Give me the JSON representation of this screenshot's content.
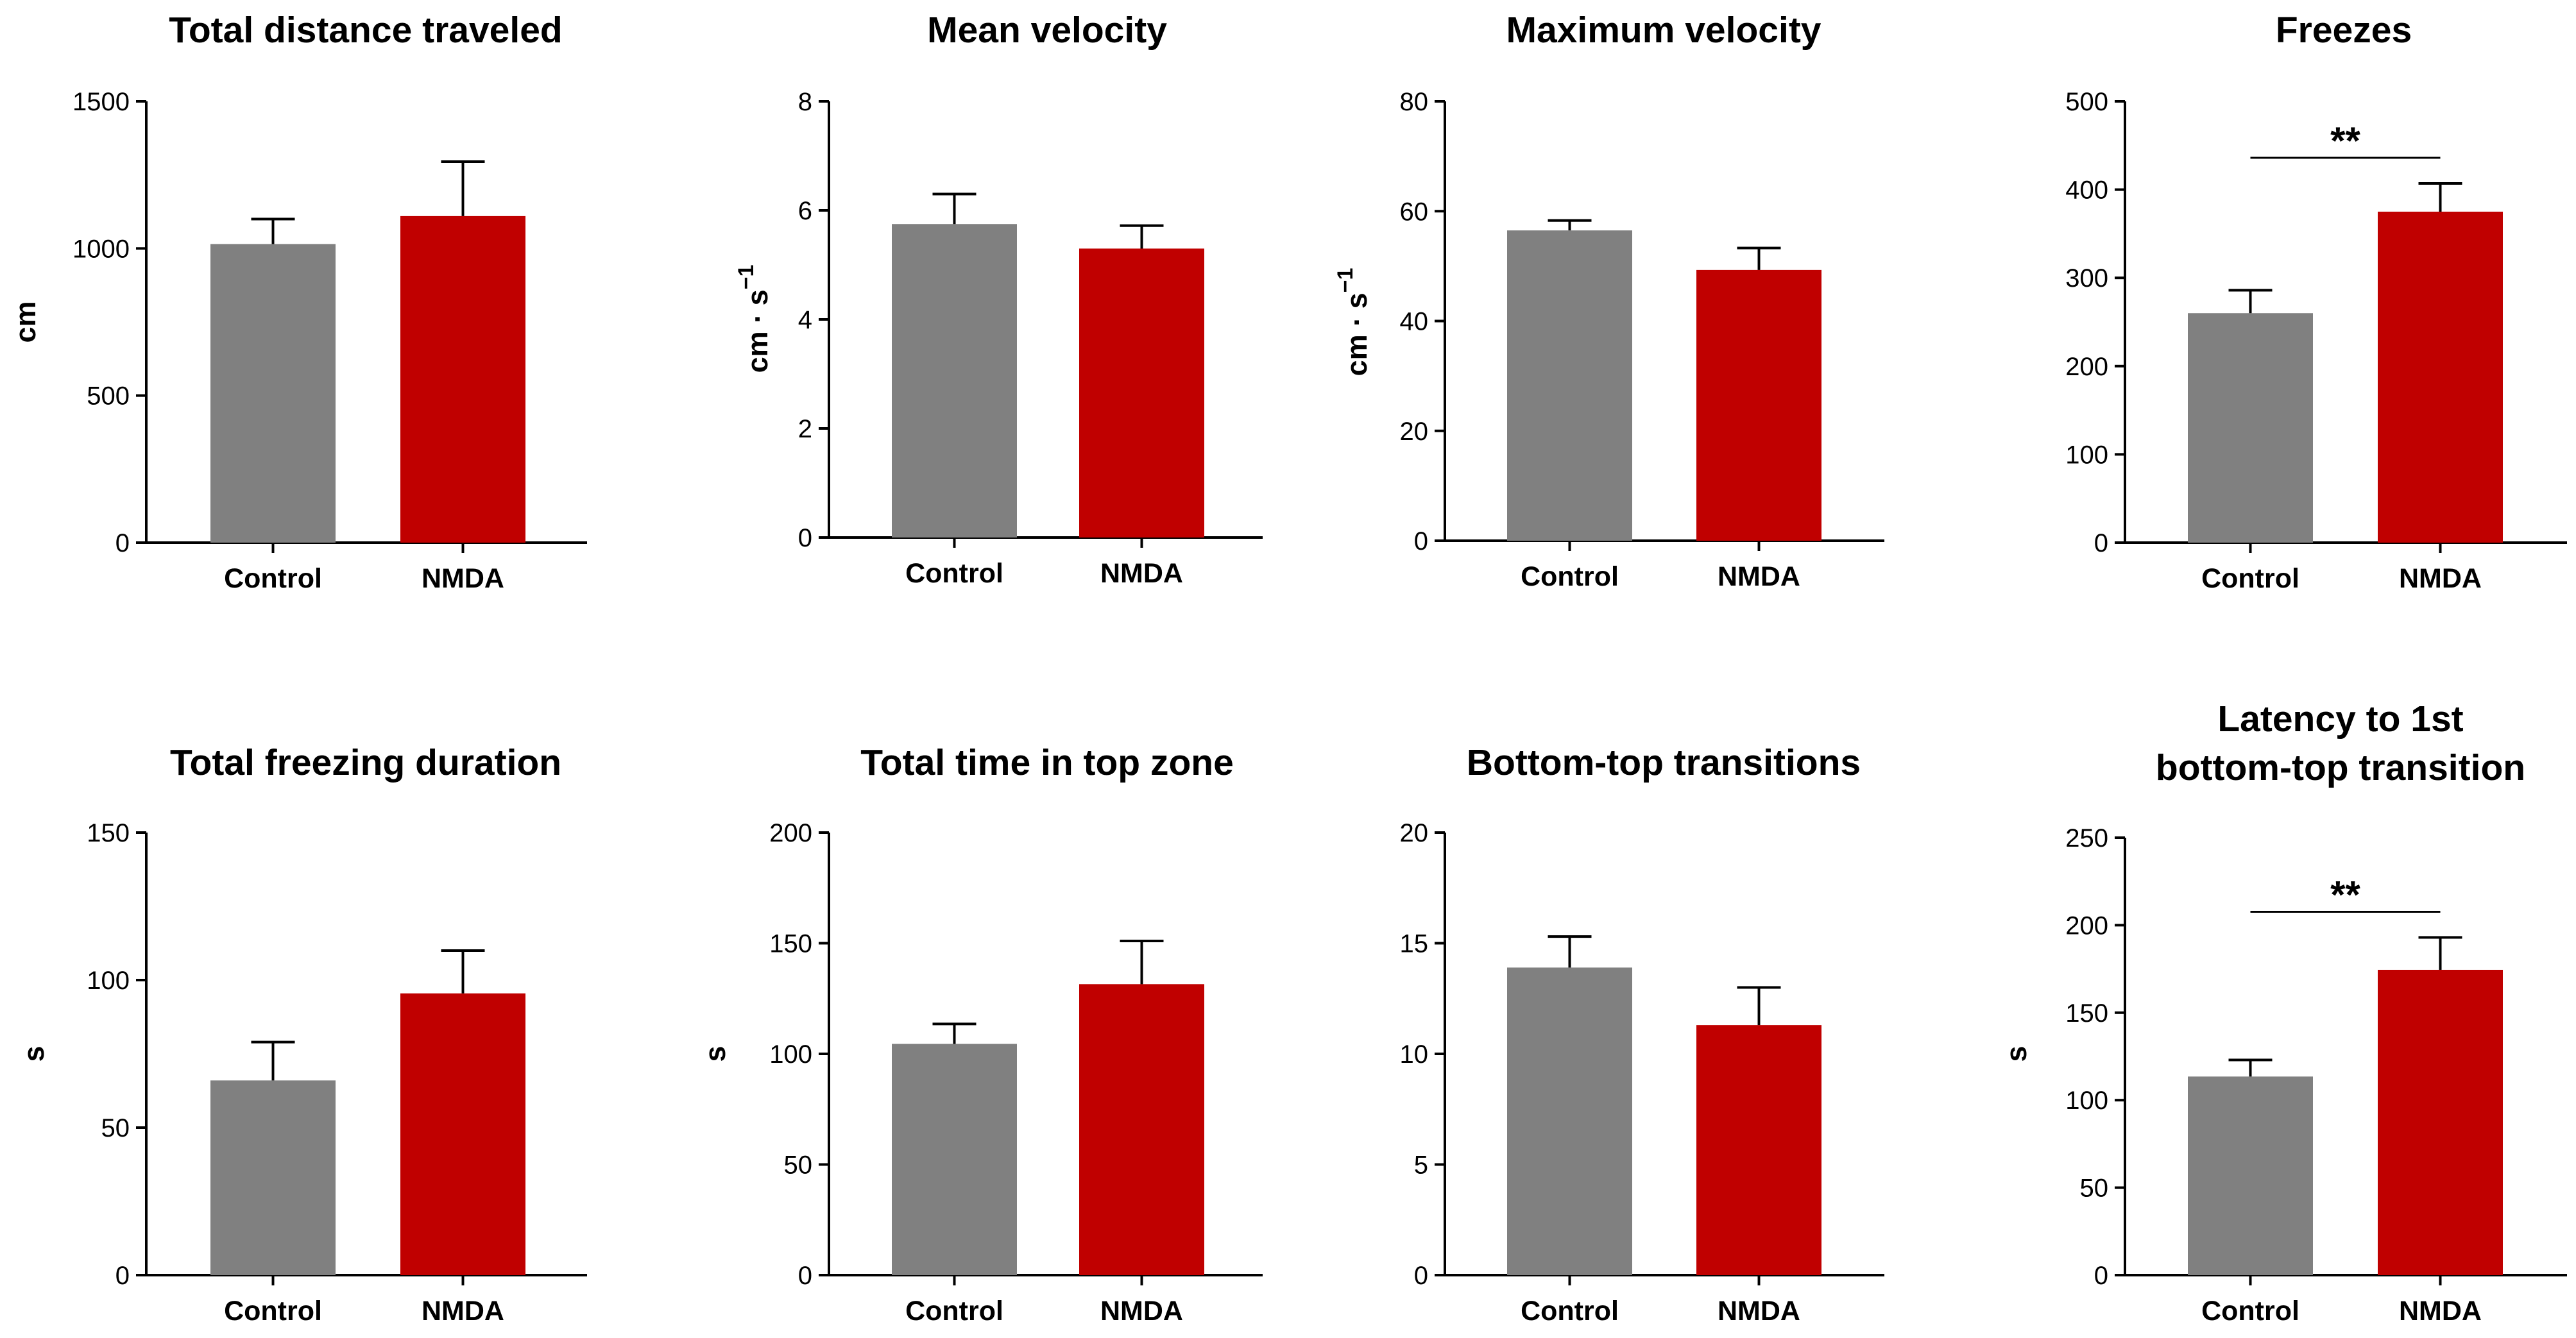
{
  "colors": {
    "control": "#808080",
    "nmda": "#c00000"
  },
  "chart_data": [
    {
      "type": "bar",
      "title": [
        "Total distance traveled"
      ],
      "ylabel": "cm",
      "ylabel_superscript": "",
      "ylim": [
        0,
        1500
      ],
      "yticks": [
        "0",
        "500",
        "1000",
        "1500"
      ],
      "categories": [
        "Control",
        "NMDA"
      ],
      "values": [
        1015,
        1110
      ],
      "errors": [
        85,
        185
      ],
      "significance": null
    },
    {
      "type": "bar",
      "title": [
        "Mean velocity"
      ],
      "ylabel": "cm · s",
      "ylabel_superscript": "−1",
      "ylim": [
        0,
        8
      ],
      "yticks": [
        "0",
        "2",
        "4",
        "6",
        "8"
      ],
      "categories": [
        "Control",
        "NMDA"
      ],
      "values": [
        5.75,
        5.3
      ],
      "errors": [
        0.55,
        0.42
      ],
      "significance": null
    },
    {
      "type": "bar",
      "title": [
        "Maximum velocity"
      ],
      "ylabel": "cm · s",
      "ylabel_superscript": "−1",
      "ylim": [
        0,
        80
      ],
      "yticks": [
        "0",
        "20",
        "40",
        "60",
        "80"
      ],
      "categories": [
        "Control",
        "NMDA"
      ],
      "values": [
        56.5,
        49.3
      ],
      "errors": [
        1.8,
        4.0
      ],
      "significance": null
    },
    {
      "type": "bar",
      "title": [
        "Freezes"
      ],
      "ylabel": "",
      "ylabel_superscript": "",
      "ylim": [
        0,
        500
      ],
      "yticks": [
        "0",
        "100",
        "200",
        "300",
        "400",
        "500"
      ],
      "categories": [
        "Control",
        "NMDA"
      ],
      "values": [
        260,
        375
      ],
      "errors": [
        26,
        32
      ],
      "significance": "**"
    },
    {
      "type": "bar",
      "title": [
        "Total freezing duration"
      ],
      "ylabel": "s",
      "ylabel_superscript": "",
      "ylim": [
        0,
        150
      ],
      "yticks": [
        "0",
        "50",
        "100",
        "150"
      ],
      "categories": [
        "Control",
        "NMDA"
      ],
      "values": [
        66,
        95.5
      ],
      "errors": [
        13,
        14.5
      ],
      "significance": null
    },
    {
      "type": "bar",
      "title": [
        "Total time in top zone"
      ],
      "ylabel": "s",
      "ylabel_superscript": "",
      "ylim": [
        0,
        200
      ],
      "yticks": [
        "0",
        "50",
        "100",
        "150",
        "200"
      ],
      "categories": [
        "Control",
        "NMDA"
      ],
      "values": [
        104.5,
        131.5
      ],
      "errors": [
        9,
        19.5
      ],
      "significance": null
    },
    {
      "type": "bar",
      "title": [
        "Bottom-top transitions"
      ],
      "ylabel": "",
      "ylabel_superscript": "",
      "ylim": [
        0,
        20
      ],
      "yticks": [
        "0",
        "5",
        "10",
        "15",
        "20"
      ],
      "categories": [
        "Control",
        "NMDA"
      ],
      "values": [
        13.9,
        11.3
      ],
      "errors": [
        1.4,
        1.7
      ],
      "significance": null
    },
    {
      "type": "bar",
      "title": [
        "Latency to 1st",
        "bottom-top transition"
      ],
      "ylabel": "s",
      "ylabel_superscript": "",
      "ylim": [
        0,
        250
      ],
      "yticks": [
        "0",
        "50",
        "100",
        "150",
        "200",
        "250"
      ],
      "categories": [
        "Control",
        "NMDA"
      ],
      "values": [
        113.5,
        174.5
      ],
      "errors": [
        9.5,
        18.5
      ],
      "significance": "**"
    }
  ]
}
